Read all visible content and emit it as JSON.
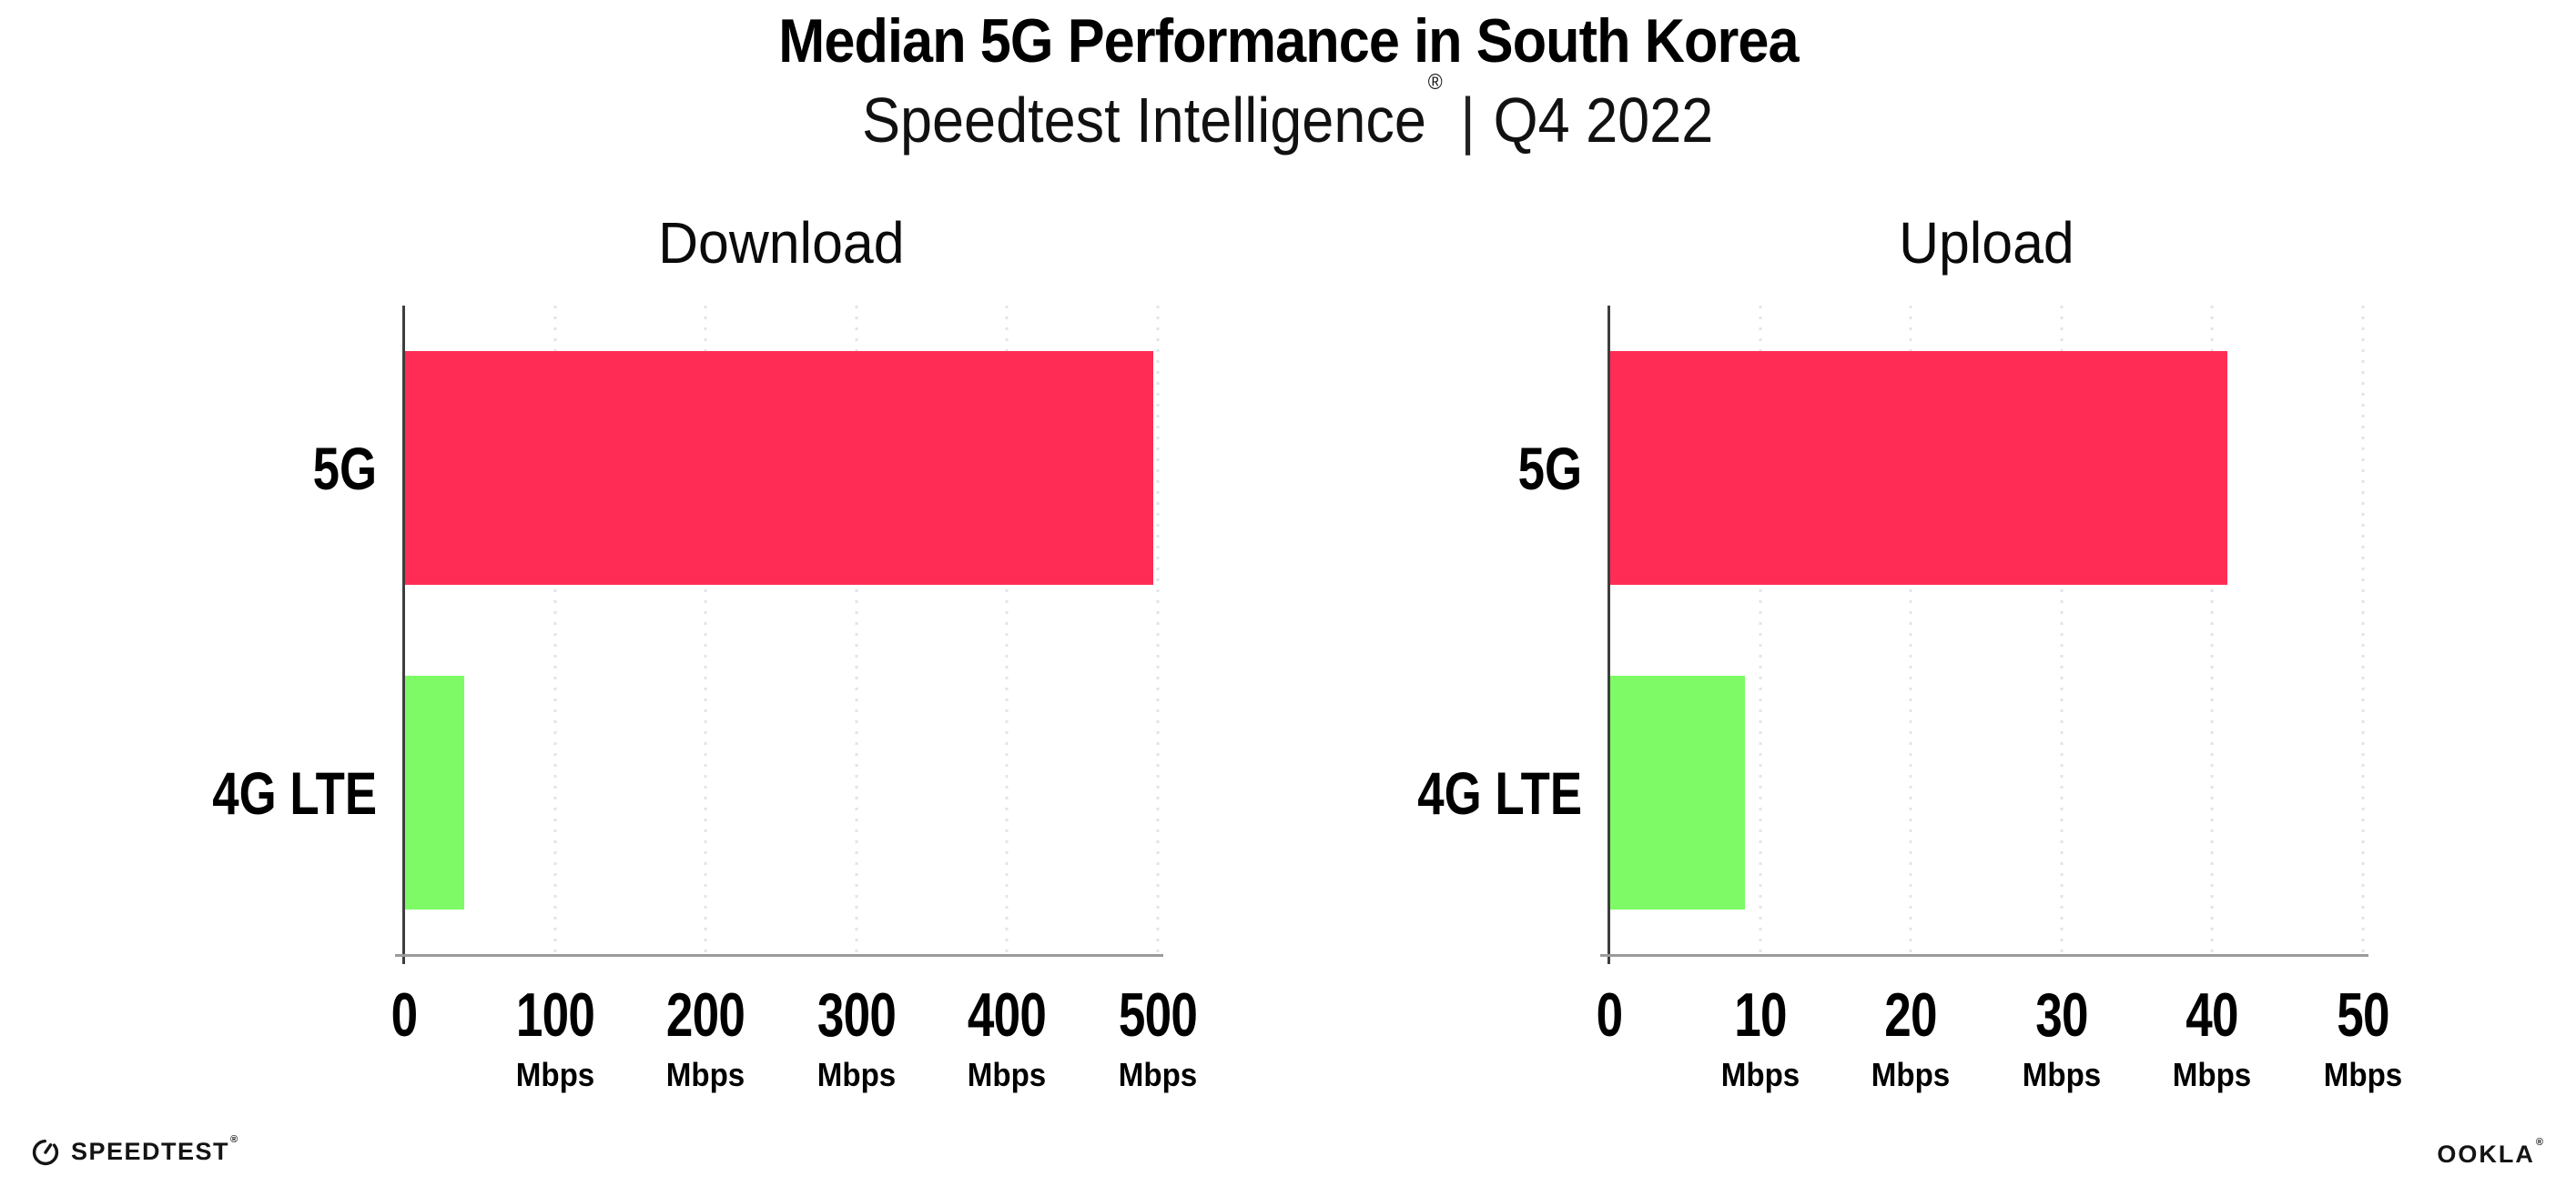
{
  "header": {
    "title": "Median 5G Performance in South Korea",
    "subtitle": {
      "brand": "Speedtest Intelligence",
      "registered": "®",
      "separator": "|",
      "period": "Q4 2022"
    }
  },
  "chart_data": [
    {
      "type": "bar",
      "orientation": "horizontal",
      "title": "Download",
      "categories": [
        "5G",
        "4G LTE"
      ],
      "values": [
        497,
        40
      ],
      "unit": "Mbps",
      "xlim": [
        0,
        500
      ],
      "xticks": [
        0,
        100,
        200,
        300,
        400,
        500
      ],
      "bar_colors": [
        "#FF2D55",
        "#7EFA66"
      ],
      "grid": "dotted-vertical",
      "legend": "none",
      "xlabel": "",
      "ylabel": ""
    },
    {
      "type": "bar",
      "orientation": "horizontal",
      "title": "Upload",
      "categories": [
        "5G",
        "4G LTE"
      ],
      "values": [
        41,
        9
      ],
      "unit": "Mbps",
      "xlim": [
        0,
        50
      ],
      "xticks": [
        0,
        10,
        20,
        30,
        40,
        50
      ],
      "bar_colors": [
        "#FF2D55",
        "#7EFA66"
      ],
      "grid": "dotted-vertical",
      "legend": "none",
      "xlabel": "",
      "ylabel": ""
    }
  ],
  "footer": {
    "speedtest": {
      "label": "SPEEDTEST",
      "registered": "®"
    },
    "ookla": {
      "label": "OOKLA",
      "registered": "®"
    }
  },
  "colors": {
    "bar_5g": "#FF2D55",
    "bar_4g_lte": "#7EFA66",
    "gridline": "#E3E3EE",
    "y_axis": "#3E3E3E",
    "x_axis": "#9B9B9B",
    "text": "#000000"
  }
}
